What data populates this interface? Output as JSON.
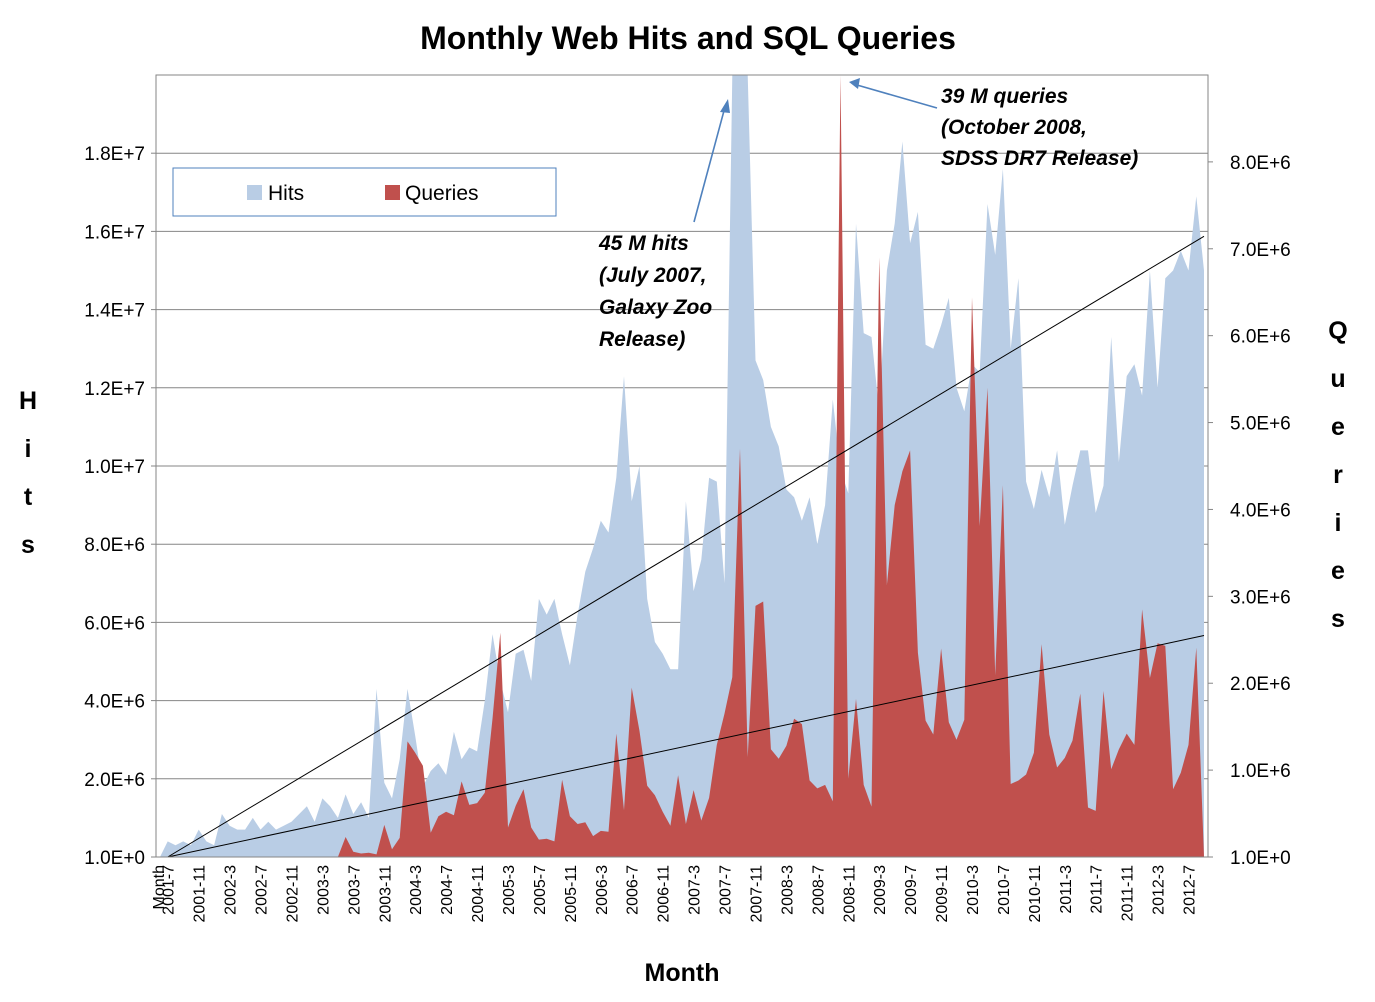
{
  "chart_data": {
    "type": "area",
    "title": "Monthly Web Hits and SQL Queries",
    "xlabel": "Month",
    "ylabel_left": "Hits",
    "ylabel_right": "Queries",
    "xlabel_first_tick": "Month",
    "x_tick_labels": [
      "2001-7",
      "2001-11",
      "2002-3",
      "2002-7",
      "2002-11",
      "2003-3",
      "2003-7",
      "2003-11",
      "2004-3",
      "2004-7",
      "2004-11",
      "2005-3",
      "2005-7",
      "2005-11",
      "2006-3",
      "2006-7",
      "2006-11",
      "2007-3",
      "2007-7",
      "2007-11",
      "2008-3",
      "2008-7",
      "2008-11",
      "2009-3",
      "2009-7",
      "2009-11",
      "2010-3",
      "2010-7",
      "2010-11",
      "2011-3",
      "2011-7",
      "2011-11",
      "2012-3",
      "2012-7"
    ],
    "x_start": "2001-7",
    "x_end": "2012-8",
    "y_left_ticks": [
      "1.0E+0",
      "2.0E+6",
      "4.0E+6",
      "6.0E+6",
      "8.0E+6",
      "1.0E+7",
      "1.2E+7",
      "1.4E+7",
      "1.6E+7",
      "1.8E+7"
    ],
    "y_right_ticks": [
      "1.0E+0",
      "1.0E+6",
      "2.0E+6",
      "3.0E+6",
      "4.0E+6",
      "5.0E+6",
      "6.0E+6",
      "7.0E+6",
      "8.0E+6"
    ],
    "ylim_left": [
      0,
      20000000
    ],
    "ylim_right": [
      0,
      9000000
    ],
    "grid": true,
    "legend_position": "top-left",
    "series": [
      {
        "name": "Hits",
        "axis": "left",
        "color": "#b9cde5",
        "values": [
          0,
          400000,
          300000,
          400000,
          300000,
          700000,
          400000,
          300000,
          1100000,
          800000,
          700000,
          700000,
          1000000,
          700000,
          900000,
          700000,
          800000,
          900000,
          1100000,
          1300000,
          900000,
          1500000,
          1300000,
          1000000,
          1600000,
          1100000,
          1400000,
          1000000,
          4300000,
          1900000,
          1500000,
          2500000,
          4300000,
          3100000,
          1800000,
          2200000,
          2400000,
          2100000,
          3200000,
          2500000,
          2800000,
          2700000,
          4000000,
          5700000,
          4500000,
          3700000,
          5200000,
          5300000,
          4500000,
          6600000,
          6200000,
          6600000,
          5700000,
          4900000,
          6200000,
          7300000,
          7900000,
          8600000,
          8300000,
          9700000,
          12300000,
          9100000,
          10000000,
          6600000,
          5500000,
          5200000,
          4800000,
          4800000,
          9100000,
          6800000,
          7600000,
          9700000,
          9600000,
          7000000,
          20000000,
          20000000,
          20000000,
          12700000,
          12200000,
          11000000,
          10500000,
          9400000,
          9200000,
          8600000,
          9200000,
          8000000,
          9000000,
          11700000,
          9900000,
          9300000,
          16200000,
          13400000,
          13300000,
          11400000,
          15000000,
          16200000,
          18300000,
          15700000,
          16500000,
          13100000,
          13000000,
          13600000,
          14300000,
          12000000,
          11400000,
          12600000,
          12400000,
          16700000,
          15400000,
          17600000,
          13000000,
          14800000,
          9600000,
          8900000,
          9900000,
          9200000,
          10400000,
          8500000,
          9500000,
          10400000,
          10400000,
          8800000,
          9500000,
          13300000,
          10100000,
          12300000,
          12600000,
          11800000,
          15000000,
          12000000,
          14800000,
          15000000,
          15500000,
          15000000,
          16900000,
          15000000
        ],
        "note_label": "45 M hits (July 2007, Galaxy Zoo Release)"
      },
      {
        "name": "Queries",
        "axis": "right",
        "color": "#c0504d",
        "values": [
          0,
          0,
          0,
          0,
          0,
          0,
          0,
          0,
          0,
          0,
          0,
          0,
          0,
          0,
          0,
          0,
          0,
          0,
          0,
          0,
          0,
          0,
          0,
          0,
          230000,
          60000,
          40000,
          50000,
          30000,
          370000,
          90000,
          220000,
          1330000,
          1200000,
          1050000,
          280000,
          470000,
          520000,
          480000,
          870000,
          600000,
          620000,
          740000,
          1590000,
          2580000,
          340000,
          590000,
          780000,
          340000,
          200000,
          210000,
          180000,
          890000,
          470000,
          380000,
          400000,
          240000,
          300000,
          290000,
          1420000,
          540000,
          1950000,
          1450000,
          820000,
          710000,
          520000,
          360000,
          940000,
          380000,
          770000,
          420000,
          680000,
          1290000,
          1650000,
          2070000,
          4700000,
          1150000,
          2890000,
          2940000,
          1240000,
          1130000,
          1280000,
          1590000,
          1530000,
          880000,
          790000,
          830000,
          640000,
          9000000,
          900000,
          1820000,
          830000,
          580000,
          6900000,
          3130000,
          4050000,
          4440000,
          4680000,
          2350000,
          1570000,
          1410000,
          2400000,
          1550000,
          1350000,
          1580000,
          6440000,
          3810000,
          5400000,
          2090000,
          4280000,
          840000,
          880000,
          950000,
          1200000,
          2450000,
          1410000,
          1030000,
          1140000,
          1340000,
          1880000,
          570000,
          530000,
          1910000,
          1010000,
          1240000,
          1420000,
          1290000,
          2850000,
          2060000,
          2460000,
          2430000,
          780000,
          970000,
          1290000,
          2410000
        ],
        "note_label": "39 M queries (October 2008, SDSS DR7 Release)"
      }
    ],
    "trendlines": [
      {
        "series": "Hits",
        "type": "linear",
        "color": "#000000"
      },
      {
        "series": "Queries",
        "type": "linear",
        "color": "#000000"
      }
    ],
    "annotations": [
      {
        "lines": [
          "45 M hits",
          "(July 2007,",
          "Galaxy Zoo",
          "Release)"
        ],
        "target": "2007-7"
      },
      {
        "lines": [
          "39 M queries",
          "(October 2008,",
          "SDSS DR7 Release)"
        ],
        "target": "2008-10"
      }
    ]
  }
}
